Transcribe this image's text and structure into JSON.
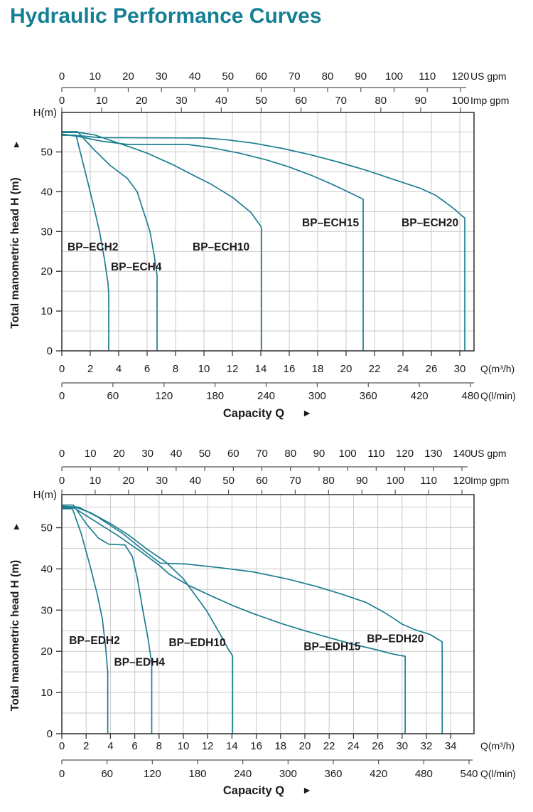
{
  "page": {
    "title": "Hydraulic Performance Curves"
  },
  "colors": {
    "title": "#157f93",
    "curve": "#1d7e90",
    "grid": "#c9c9c9",
    "plot_border": "#3a3a3a",
    "scale_line": "#555555",
    "text": "#1a1a1a"
  },
  "chart_data": [
    {
      "type": "line",
      "family": "BP-ECH series",
      "y_axis": {
        "corner_label": "H(m)",
        "title": "Total manometric head H (m)",
        "arrow": "►",
        "ticks": [
          0,
          10,
          20,
          30,
          40,
          50
        ],
        "grid_step_m": 5,
        "max_m": 60
      },
      "top_axes": [
        {
          "unit": "US gpm",
          "ticks": [
            0,
            10,
            20,
            30,
            40,
            50,
            60,
            70,
            80,
            90,
            100,
            110,
            120
          ]
        },
        {
          "unit": "Imp gpm",
          "ticks": [
            0,
            10,
            20,
            30,
            40,
            50,
            60,
            70,
            80,
            90,
            100
          ]
        }
      ],
      "bottom_axes": [
        {
          "unit": "Q(m³/h)",
          "tick_labels": [
            "0",
            "2",
            "4",
            "6",
            "8",
            "10",
            "12",
            "14",
            "16",
            "18",
            "20",
            "22",
            "24",
            "26",
            "30"
          ]
        },
        {
          "unit": "Q(l/min)",
          "ticks": [
            0,
            60,
            120,
            180,
            240,
            300,
            360,
            420,
            480
          ]
        }
      ],
      "x_title": "Capacity Q",
      "x_title_arrow": "►",
      "series": [
        {
          "name": "BP–ECH2",
          "label_at": [
            0.4,
            26.1
          ],
          "points": [
            [
              0,
              54.2
            ],
            [
              1.0,
              54.2
            ],
            [
              1.75,
              43.5
            ],
            [
              2.2,
              37
            ],
            [
              2.65,
              30
            ],
            [
              3.0,
              23
            ],
            [
              3.25,
              17
            ],
            [
              3.3,
              14
            ],
            [
              3.3,
              0
            ]
          ]
        },
        {
          "name": "BP–ECH4",
          "label_at": [
            3.45,
            21.1
          ],
          "points": [
            [
              0,
              55.1
            ],
            [
              1.1,
              55.1
            ],
            [
              2.2,
              50.8
            ],
            [
              3.4,
              46.6
            ],
            [
              4.6,
              43.4
            ],
            [
              5.3,
              40
            ],
            [
              6.2,
              30
            ],
            [
              6.5,
              24
            ],
            [
              6.7,
              19
            ],
            [
              6.7,
              0
            ]
          ]
        },
        {
          "name": "BP–ECH10",
          "label_at": [
            9.2,
            26.1
          ],
          "points": [
            [
              0,
              54.9
            ],
            [
              1.2,
              54.9
            ],
            [
              2.3,
              54.3
            ],
            [
              3.5,
              52.8
            ],
            [
              5,
              51
            ],
            [
              6,
              49.7
            ],
            [
              7.75,
              46.9
            ],
            [
              9,
              44.6
            ],
            [
              10.5,
              41.9
            ],
            [
              12,
              38.6
            ],
            [
              13.3,
              34.8
            ],
            [
              14,
              31.3
            ],
            [
              14.05,
              30.8
            ],
            [
              14.05,
              0
            ]
          ]
        },
        {
          "name": "BP–ECH15",
          "label_at": [
            16.9,
            32.2
          ],
          "points": [
            [
              0,
              54.5
            ],
            [
              1.3,
              53.8
            ],
            [
              2.8,
              52.7
            ],
            [
              4.6,
              51.9
            ],
            [
              8.8,
              51.9
            ],
            [
              10.5,
              51.1
            ],
            [
              12.5,
              49.7
            ],
            [
              14.4,
              48
            ],
            [
              16,
              46.2
            ],
            [
              17.5,
              44.2
            ],
            [
              19,
              41.9
            ],
            [
              20.3,
              39.7
            ],
            [
              21.1,
              38.3
            ],
            [
              21.2,
              38.1
            ],
            [
              21.2,
              0
            ]
          ]
        },
        {
          "name": "BP–ECH20",
          "label_at": [
            23.9,
            32.2
          ],
          "points": [
            [
              0,
              54.3
            ],
            [
              1.5,
              54
            ],
            [
              2.6,
              53.6
            ],
            [
              9.9,
              53.5
            ],
            [
              11.5,
              53.1
            ],
            [
              13.5,
              52.2
            ],
            [
              15.5,
              50.9
            ],
            [
              17.5,
              49.3
            ],
            [
              19.5,
              47.4
            ],
            [
              21.5,
              45.3
            ],
            [
              23.5,
              42.9
            ],
            [
              25.2,
              40.9
            ],
            [
              26.6,
              39.1
            ],
            [
              28,
              37.3
            ],
            [
              29.4,
              35.4
            ],
            [
              30.4,
              33.8
            ],
            [
              30.7,
              33.4
            ],
            [
              30.7,
              0
            ]
          ]
        }
      ]
    },
    {
      "type": "line",
      "family": "BP-EDH series",
      "y_axis": {
        "corner_label": "H(m)",
        "title": "Total manometric head H (m)",
        "arrow": "►",
        "ticks": [
          0,
          10,
          20,
          30,
          40,
          50
        ],
        "grid_step_m": 5,
        "max_m": 58
      },
      "top_axes": [
        {
          "unit": "US gpm",
          "ticks": [
            0,
            10,
            20,
            30,
            40,
            50,
            60,
            70,
            80,
            90,
            100,
            110,
            120,
            130,
            140
          ]
        },
        {
          "unit": "Imp gpm",
          "ticks": [
            0,
            10,
            20,
            30,
            40,
            50,
            60,
            70,
            80,
            90,
            100,
            110,
            120
          ]
        }
      ],
      "bottom_axes": [
        {
          "unit": "Q(m³/h)",
          "tick_labels": [
            "0",
            "2",
            "4",
            "6",
            "8",
            "10",
            "12",
            "14",
            "16",
            "18",
            "20",
            "22",
            "24",
            "26",
            "30",
            "32",
            "34"
          ]
        },
        {
          "unit": "Q(l/min)",
          "ticks": [
            0,
            60,
            120,
            180,
            240,
            300,
            360,
            420,
            480,
            540
          ]
        }
      ],
      "x_title": "Capacity Q",
      "x_title_arrow": "►",
      "series": [
        {
          "name": "BP–EDH2",
          "label_at": [
            0.6,
            22.6
          ],
          "points": [
            [
              0,
              54.6
            ],
            [
              0.88,
              54.6
            ],
            [
              1.6,
              48.5
            ],
            [
              2.3,
              41
            ],
            [
              2.9,
              34
            ],
            [
              3.33,
              28
            ],
            [
              3.6,
              21
            ],
            [
              3.78,
              15
            ],
            [
              3.78,
              0
            ]
          ]
        },
        {
          "name": "BP–EDH4",
          "label_at": [
            4.3,
            17.4
          ],
          "points": [
            [
              0,
              55.5
            ],
            [
              0.95,
              55.5
            ],
            [
              2,
              51
            ],
            [
              3,
              47.5
            ],
            [
              3.86,
              46
            ],
            [
              5.2,
              45.8
            ],
            [
              5.8,
              43
            ],
            [
              6.2,
              38
            ],
            [
              6.6,
              31
            ],
            [
              7.1,
              23
            ],
            [
              7.4,
              17
            ],
            [
              7.4,
              0
            ]
          ]
        },
        {
          "name": "BP–EDH10",
          "label_at": [
            8.8,
            22.1
          ],
          "points": [
            [
              0,
              55.0
            ],
            [
              1.2,
              54.9
            ],
            [
              2.4,
              53.6
            ],
            [
              4,
              51
            ],
            [
              5.5,
              48.2
            ],
            [
              7,
              44.8
            ],
            [
              8.5,
              41.8
            ],
            [
              10,
              37.6
            ],
            [
              11.9,
              29.9
            ],
            [
              12.9,
              24.8
            ],
            [
              13.7,
              20.5
            ],
            [
              14.05,
              18.9
            ],
            [
              14.05,
              0
            ]
          ]
        },
        {
          "name": "BP–EDH15",
          "label_at": [
            19.9,
            21.2
          ],
          "points": [
            [
              0,
              54.8
            ],
            [
              1,
              54.8
            ],
            [
              2.5,
              52
            ],
            [
              4.5,
              48.3
            ],
            [
              6.5,
              44.2
            ],
            [
              8,
              40.9
            ],
            [
              8.85,
              38.7
            ],
            [
              10.5,
              35.9
            ],
            [
              12.4,
              33.3
            ],
            [
              14,
              31.2
            ],
            [
              15.7,
              29.2
            ],
            [
              18,
              26.8
            ],
            [
              20,
              25
            ],
            [
              22,
              23.3
            ],
            [
              24,
              21.7
            ],
            [
              26,
              20.3
            ],
            [
              28,
              19.5
            ],
            [
              29.6,
              19.0
            ],
            [
              30.25,
              18.8
            ],
            [
              30.25,
              0
            ]
          ]
        },
        {
          "name": "BP–EDH20",
          "label_at": [
            25.1,
            23.1
          ],
          "points": [
            [
              0,
              55.2
            ],
            [
              1.4,
              55.0
            ],
            [
              3,
              52.5
            ],
            [
              5,
              48.6
            ],
            [
              6.8,
              44.3
            ],
            [
              8.1,
              41.4
            ],
            [
              10.2,
              41.2
            ],
            [
              13,
              40.3
            ],
            [
              15.7,
              39.3
            ],
            [
              18.5,
              37.6
            ],
            [
              21,
              35.7
            ],
            [
              23,
              33.9
            ],
            [
              25,
              31.9
            ],
            [
              27,
              29.5
            ],
            [
              29,
              27.6
            ],
            [
              30,
              26.6
            ],
            [
              31.1,
              25.2
            ],
            [
              32.3,
              24.1
            ],
            [
              33.3,
              22.3
            ],
            [
              33.3,
              0
            ]
          ]
        }
      ]
    }
  ]
}
